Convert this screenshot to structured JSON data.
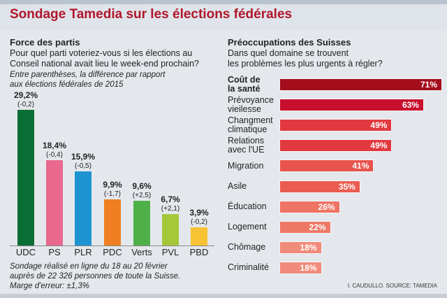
{
  "title": "Sondage Tamedia sur les élections fédérales",
  "left": {
    "heading": "Force des partis",
    "question": [
      "Pour quel parti voteriez-vous si les élections au",
      "Conseil national avait lieu le week-end prochain?"
    ],
    "note": [
      "Entre parenthèses, la différence par rapport",
      "aux élections fédérales de 2015"
    ],
    "footnote": [
      "Sondage réalisé en ligne du 18 au 20 février",
      "auprès de 22 326 personnes de toute la Suisse.",
      "Marge d'erreur: ±1,3%"
    ]
  },
  "right": {
    "heading": "Préoccupations des Suisses",
    "question": [
      "Dans quel domaine se trouvent",
      "les problèmes les plus urgents à régler?"
    ],
    "source": "I. CAUDULLO. SOURCE: TAMEDIA"
  },
  "chart_data": [
    {
      "type": "bar",
      "title": "Force des partis",
      "categories": [
        "UDC",
        "PS",
        "PLR",
        "PDC",
        "Verts",
        "PVL",
        "PBD"
      ],
      "values": [
        29.2,
        18.4,
        15.9,
        9.9,
        9.6,
        6.7,
        3.9
      ],
      "value_labels": [
        "29,2%",
        "18,4%",
        "15,9%",
        "9,9%",
        "9,6%",
        "6,7%",
        "3,9%"
      ],
      "differences": [
        "(-0,2)",
        "(-0,4)",
        "(-0,5)",
        "(-1,7)",
        "(+2,5)",
        "(+2,1)",
        "(-0,2)"
      ],
      "colors": [
        "#0b6e35",
        "#e8688e",
        "#1e93d2",
        "#ef7f22",
        "#4fb04a",
        "#a5c83a",
        "#f7c233"
      ],
      "ylim": [
        0,
        30
      ]
    },
    {
      "type": "bar",
      "orientation": "horizontal",
      "title": "Préoccupations des Suisses",
      "categories": [
        [
          "Coût de",
          "la santé"
        ],
        [
          "Prévoyance",
          "vieilesse"
        ],
        [
          "Changment",
          "climatique"
        ],
        [
          "Relations",
          "avec l'UE"
        ],
        [
          "Migration"
        ],
        [
          "Asile"
        ],
        [
          "Éducation"
        ],
        [
          "Logement"
        ],
        [
          "Chômage"
        ],
        [
          "Criminalité"
        ]
      ],
      "values": [
        71,
        63,
        49,
        49,
        41,
        35,
        26,
        22,
        18,
        18
      ],
      "value_labels": [
        "71%",
        "63%",
        "49%",
        "49%",
        "41%",
        "35%",
        "26%",
        "22%",
        "18%",
        "18%"
      ],
      "colors": [
        "#a30d1c",
        "#c8102e",
        "#e1393f",
        "#e1393f",
        "#e8544c",
        "#eb5c50",
        "#ee7464",
        "#ee7866",
        "#f08a7a",
        "#f08a7a"
      ],
      "xlim": [
        0,
        71
      ]
    }
  ]
}
